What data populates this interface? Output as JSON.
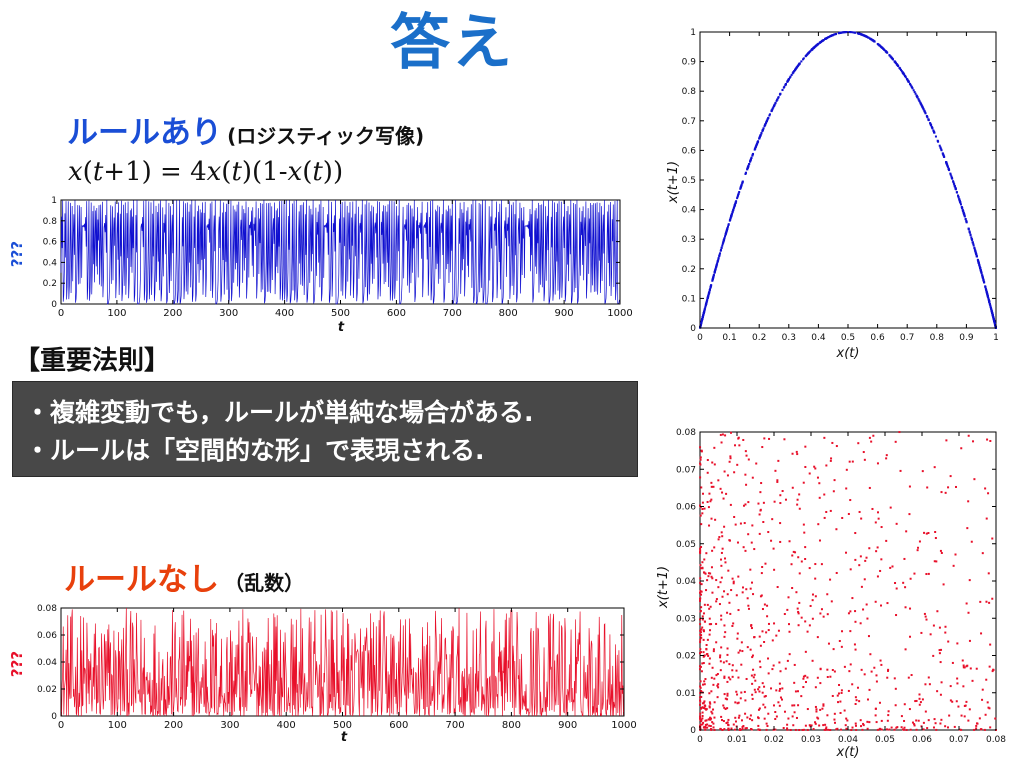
{
  "title": "答え",
  "rule_section": {
    "heading": "ルールあり",
    "subheading": "(ロジスティック写像)",
    "equation_parts": [
      "x",
      "(",
      "t",
      "+1) = 4",
      "x",
      "(",
      "t",
      ")(1-",
      "x",
      "(",
      "t",
      "))"
    ]
  },
  "law": {
    "label": "【重要法則】",
    "lines": [
      "・複雑変動でも，ルールが単純な場合がある.",
      "・ルールは「空間的な形」で表現される."
    ]
  },
  "norule_section": {
    "heading": "ルールなし",
    "subheading": "（乱数）"
  },
  "colors": {
    "accent_title": "#1b6fc9",
    "rule_blue": "#1a4ed6",
    "norule_red": "#e8400c",
    "law_box": "#484848"
  },
  "chart_data": [
    {
      "id": "logistic-timeseries",
      "type": "line",
      "xlabel": "t",
      "ylabel": "???",
      "xlim": [
        0,
        1000
      ],
      "ylim": [
        0,
        1
      ],
      "xticks": [
        0,
        100,
        200,
        300,
        400,
        500,
        600,
        700,
        800,
        900,
        1000
      ],
      "yticks": [
        0,
        0.2,
        0.4,
        0.6,
        0.8,
        1
      ],
      "ytick_labels": [
        "0",
        "0.2",
        "0.4",
        "0.6",
        "0.8",
        "1"
      ],
      "series": [
        {
          "color": "#1010d0",
          "generator": "logistic",
          "r": 4,
          "x0": 0.3,
          "n": 1000
        }
      ]
    },
    {
      "id": "logistic-return-map",
      "type": "scatter",
      "xlabel": "x(t)",
      "ylabel": "x(t+1)",
      "xlim": [
        0,
        1
      ],
      "ylim": [
        0,
        1
      ],
      "xticks": [
        0,
        0.1,
        0.2,
        0.3,
        0.4,
        0.5,
        0.6,
        0.7,
        0.8,
        0.9,
        1
      ],
      "yticks": [
        0,
        0.1,
        0.2,
        0.3,
        0.4,
        0.5,
        0.6,
        0.7,
        0.8,
        0.9,
        1
      ],
      "series": [
        {
          "color": "#1010d0",
          "generator": "logistic-map",
          "r": 4,
          "x0": 0.3,
          "n": 1000
        }
      ]
    },
    {
      "id": "random-timeseries",
      "type": "line",
      "xlabel": "t",
      "ylabel": "???",
      "xlim": [
        0,
        1000
      ],
      "ylim": [
        0,
        0.08
      ],
      "xticks": [
        0,
        100,
        200,
        300,
        400,
        500,
        600,
        700,
        800,
        900,
        1000
      ],
      "yticks": [
        0,
        0.02,
        0.04,
        0.06,
        0.08
      ],
      "ytick_labels": [
        "0",
        "0.02",
        "0.04",
        "0.06",
        "0.08"
      ],
      "series": [
        {
          "color": "#e8102a",
          "generator": "random",
          "n": 1000,
          "max": 0.08
        }
      ]
    },
    {
      "id": "random-return-map",
      "type": "scatter",
      "xlabel": "x(t)",
      "ylabel": "x(t+1)",
      "xlim": [
        0,
        0.08
      ],
      "ylim": [
        0,
        0.08
      ],
      "xticks": [
        0,
        0.01,
        0.02,
        0.03,
        0.04,
        0.05,
        0.06,
        0.07,
        0.08
      ],
      "yticks": [
        0,
        0.01,
        0.02,
        0.03,
        0.04,
        0.05,
        0.06,
        0.07,
        0.08
      ],
      "series": [
        {
          "color": "#e8102a",
          "generator": "random-map",
          "n": 1000,
          "max": 0.08
        }
      ]
    }
  ]
}
